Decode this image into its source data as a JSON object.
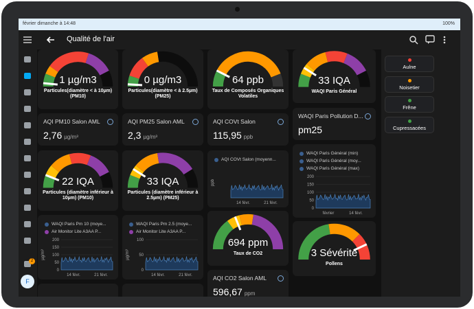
{
  "status": {
    "time": "février dimanche à 14:48",
    "battery": "100%"
  },
  "header": {
    "title": "Qualité de l'air"
  },
  "sidebar": {
    "badge": "2",
    "avatar": "F"
  },
  "cards": [
    {
      "kind": "gauge",
      "value": "1 µg/m3",
      "label": "Particules(diamètre < à 10µm) (PM10)"
    },
    {
      "kind": "entity",
      "name": "AQI PM10 Salon AML",
      "value": "2,76",
      "unit": "µg/m³"
    },
    {
      "kind": "gauge",
      "value": "22 IQA",
      "label": "Particules (diamètre inférieur à 10µm) (PM10)"
    },
    {
      "kind": "graph",
      "legend": [
        "WAQI Paris Pm 10 (moye...",
        "Air Monitor Lite A3AA P..."
      ],
      "y_label": "µg/m³",
      "yticks": [
        0,
        50,
        100,
        150,
        200
      ],
      "x_labels": [
        "14 févr.",
        "21 févr."
      ]
    },
    {
      "kind": "gauge",
      "value": "0 µg/m3",
      "label": "Particules(diamètre < à 2.5µm) (PM25)"
    },
    {
      "kind": "entity",
      "name": "AQI PM25 Salon AML",
      "value": "2,3",
      "unit": "µg/m³"
    },
    {
      "kind": "gauge",
      "value": "33 IQA",
      "label": "Particules (diamètre inférieur à 2.5µm) (PM25)"
    },
    {
      "kind": "graph",
      "legend": [
        "WAQI Paris Pm 2.5 (moye...",
        "Air Monitor Lite A3AA P..."
      ],
      "y_label": "µg/m³",
      "yticks": [
        0,
        50,
        100
      ],
      "x_labels": [
        "14 févr.",
        "21 févr."
      ]
    },
    {
      "kind": "gauge",
      "value": "64 ppb",
      "label": "Taux de Composés Organiques Volatiles"
    },
    {
      "kind": "entity",
      "name": "AQI COVt Salon",
      "value": "115,95",
      "unit": "ppb"
    },
    {
      "kind": "graph",
      "legend": [
        "AQI COVt Salon (moyenn..."
      ],
      "y_label": "ppb",
      "yticks": [],
      "x_labels": [
        "14 févr.",
        "21 févr."
      ]
    },
    {
      "kind": "gauge",
      "value": "694 ppm",
      "label": "Taux de CO2"
    },
    {
      "kind": "entity",
      "name": "AQI CO2 Salon AML",
      "value": "596,67",
      "unit": "ppm"
    },
    {
      "kind": "gauge",
      "value": "33 IQA",
      "label": "WAQI Paris Général"
    },
    {
      "kind": "entity",
      "name": "WAQI Paris Pollution D...",
      "value": "pm25"
    },
    {
      "kind": "graph",
      "legend": [
        "WAQI Paris Général (min)",
        "WAQI Paris Général (moy...",
        "WAQI Paris Général (max)"
      ],
      "yticks": [
        0,
        50,
        100,
        150,
        200
      ],
      "x_labels": [
        "février",
        "14 févr."
      ]
    },
    {
      "kind": "gauge",
      "value": "3 Sévérité",
      "label": "Pollens"
    }
  ],
  "pollens": [
    "Aulne",
    "Noisetier",
    "Frêne",
    "Cupressacées"
  ]
}
